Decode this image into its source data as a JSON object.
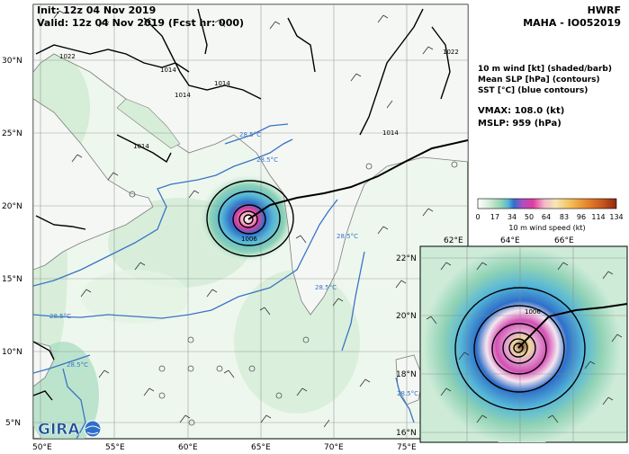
{
  "header": {
    "init": "Init:   12z 04 Nov 2019",
    "valid": "Valid: 12z 04 Nov 2019 (Fcst hr: 000)",
    "model": "HWRF",
    "storm": "MAHA - IO052019"
  },
  "legend": {
    "line1": "10 m wind [kt] (shaded/barb)",
    "line2": "Mean SLP [hPa] (contours)",
    "line3": "SST [°C] (blue contours)",
    "vmax": "VMAX: 108.0 (kt)",
    "mslp": "MSLP:  959 (hPa)"
  },
  "colorbar": {
    "ticks": [
      "0",
      "17",
      "34",
      "50",
      "64",
      "83",
      "96",
      "114",
      "134"
    ],
    "label": "10 m wind speed (kt)",
    "colors": [
      "#ffffff",
      "#cfead2",
      "#8fd2b5",
      "#55b6d8",
      "#2f6fc9",
      "#a94fc4",
      "#e13da0",
      "#f5b8c8",
      "#f7e6b8",
      "#f5c35c",
      "#e7892d",
      "#c7561d",
      "#8c2a0f"
    ]
  },
  "main_map": {
    "lon_labels": [
      "50°E",
      "55°E",
      "60°E",
      "65°E",
      "70°E",
      "75°E"
    ],
    "lat_labels": [
      "5°N",
      "10°N",
      "15°N",
      "20°N",
      "25°N",
      "30°N"
    ],
    "slp_labels": [
      "1022",
      "1014",
      "1014",
      "1014",
      "1014",
      "1014",
      "1022",
      "1006"
    ],
    "sst_labels": [
      "28.5°C",
      "28.5°C",
      "28.5°C",
      "28.5°C",
      "28.5°C",
      "28.5°C",
      "28.5°C"
    ]
  },
  "inset_map": {
    "lon_labels": [
      "62°E",
      "64°E",
      "66°E"
    ],
    "lat_labels": [
      "16°N",
      "18°N",
      "20°N",
      "22°N"
    ],
    "slp_label": "1006"
  },
  "logo": {
    "text": "GIRA"
  }
}
